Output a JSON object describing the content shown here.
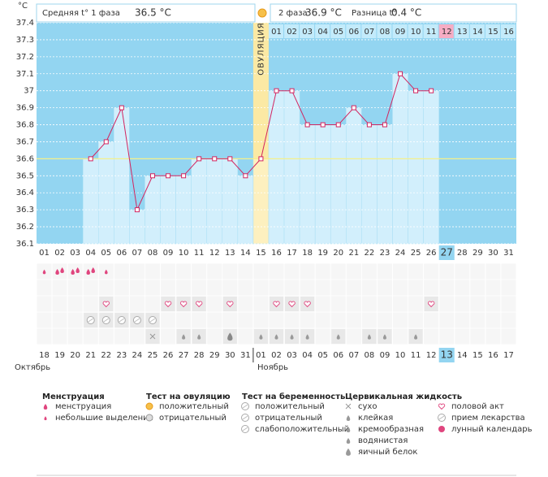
{
  "header": {
    "phase1_label": "Средняя t° 1 фаза",
    "phase1_value": "36.5 °C",
    "phase2_label": "2 фаза",
    "phase2_value": "36.9 °C",
    "diff_label": "Разница t°",
    "diff_value": "0.4 °C"
  },
  "chart_data": {
    "type": "line",
    "y_label": "°C",
    "categories": [
      "01",
      "02",
      "03",
      "04",
      "05",
      "06",
      "07",
      "08",
      "09",
      "10",
      "11",
      "12",
      "13",
      "14",
      "15",
      "16",
      "17",
      "18",
      "19",
      "20",
      "21",
      "22",
      "23",
      "24",
      "25",
      "26",
      "27",
      "28",
      "29",
      "30",
      "31"
    ],
    "values": [
      null,
      null,
      null,
      36.6,
      36.7,
      36.9,
      36.3,
      36.5,
      36.5,
      36.5,
      36.6,
      36.6,
      36.6,
      36.5,
      36.6,
      37.0,
      37.0,
      36.8,
      36.8,
      36.8,
      36.9,
      36.8,
      36.8,
      37.1,
      37.0,
      37.0,
      null,
      null,
      null,
      null,
      null
    ],
    "color": "#d3245f",
    "ylim": [
      36.1,
      37.4
    ],
    "yticks": [
      36.1,
      36.2,
      36.3,
      36.4,
      36.5,
      36.6,
      36.7,
      36.8,
      36.9,
      37,
      37.1,
      37.2,
      37.3,
      37.4
    ],
    "grid": true,
    "coverline": 36.6,
    "ovulation_day": "15",
    "ovulation_label": "ОВУЛЯЦИЯ",
    "current_day": "27",
    "phase2_days": [
      "01",
      "02",
      "03",
      "04",
      "05",
      "06",
      "07",
      "08",
      "09",
      "10",
      "11",
      "12",
      "13",
      "14",
      "15",
      "16"
    ],
    "dates": [
      "18",
      "19",
      "20",
      "21",
      "22",
      "23",
      "24",
      "25",
      "26",
      "27",
      "28",
      "29",
      "30",
      "31",
      "01",
      "02",
      "03",
      "04",
      "05",
      "06",
      "07",
      "08",
      "09",
      "10",
      "11",
      "12",
      "13",
      "14",
      "15",
      "16",
      "17"
    ],
    "red_dates": [
      4,
      5,
      11,
      12,
      18,
      19,
      24,
      25
    ]
  },
  "months": [
    "Октябрь",
    "Ноябрь"
  ],
  "legend": {
    "groups": [
      {
        "title": "Менструация",
        "items": [
          "менструация",
          "небольшие выделения"
        ]
      },
      {
        "title": "Тест на овуляцию",
        "items": [
          "положительный",
          "отрицательный"
        ]
      },
      {
        "title": "Тест на беременность",
        "items": [
          "положительный",
          "отрицательный",
          "слабоположительный"
        ]
      },
      {
        "title": "Цервикальная жидкость",
        "items": [
          "сухо",
          "клейкая",
          "кремообразная",
          "водянистая",
          "яичный белок"
        ]
      },
      {
        "items": [
          "половой акт",
          "прием лекарства",
          "лунный календарь"
        ]
      }
    ]
  }
}
